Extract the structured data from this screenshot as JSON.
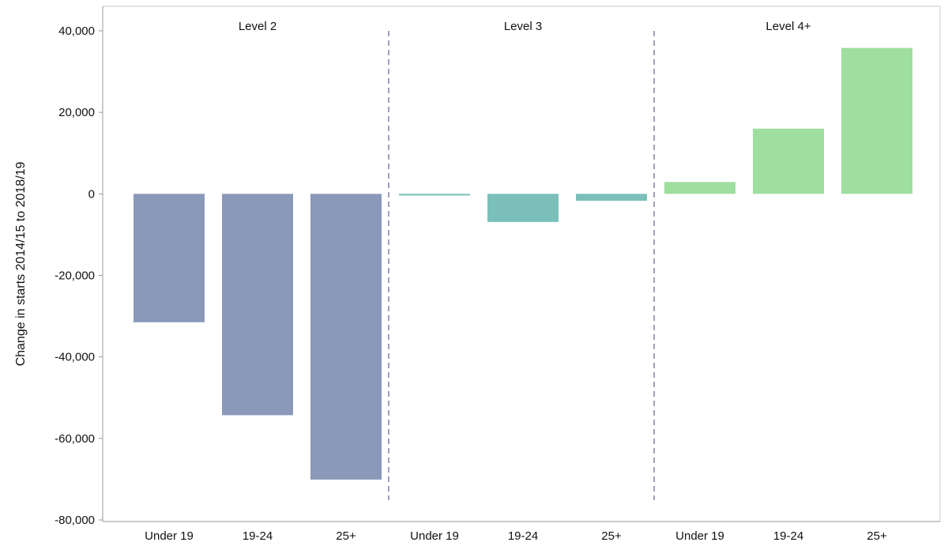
{
  "chart_data": {
    "type": "bar",
    "title": "",
    "xlabel": "",
    "ylabel": "Change in starts 2014/15 to 2018/19",
    "ylim": [
      -80000,
      40000
    ],
    "yticks": [
      40000,
      20000,
      0,
      -20000,
      -40000,
      -60000,
      -80000
    ],
    "ytick_labels": [
      "40,000",
      "20,000",
      "0",
      "-20,000",
      "-40,000",
      "-60,000",
      "-80,000"
    ],
    "grid": false,
    "legend": "none",
    "groups": [
      {
        "name": "Level 2",
        "color": "#8a98b9",
        "categories": [
          "Under 19",
          "19-24",
          "25+"
        ],
        "values": [
          -31500,
          -54300,
          -70100
        ]
      },
      {
        "name": "Level 3",
        "color": "#7bbfba",
        "categories": [
          "Under 19",
          "19-24",
          "25+"
        ],
        "values": [
          -400,
          -6900,
          -1700
        ]
      },
      {
        "name": "Level 4+",
        "color": "#9ede9f",
        "categories": [
          "Under 19",
          "19-24",
          "25+"
        ],
        "values": [
          2900,
          16000,
          35800
        ]
      }
    ],
    "separator_color": "#a39fc0"
  }
}
